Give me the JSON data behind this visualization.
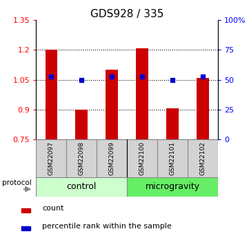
{
  "title": "GDS928 / 335",
  "samples": [
    "GSM22097",
    "GSM22098",
    "GSM22099",
    "GSM22100",
    "GSM22101",
    "GSM22102"
  ],
  "red_values": [
    1.2,
    0.9,
    1.1,
    1.21,
    0.905,
    1.06
  ],
  "blue_values": [
    1.065,
    1.05,
    1.065,
    1.065,
    1.05,
    1.065
  ],
  "ylim_left": [
    0.75,
    1.35
  ],
  "ylim_right": [
    0,
    100
  ],
  "yticks_left": [
    0.75,
    0.9,
    1.05,
    1.2,
    1.35
  ],
  "ytick_labels_left": [
    "0.75",
    "0.9",
    "1.05",
    "1.2",
    "1.35"
  ],
  "yticks_right": [
    0,
    25,
    50,
    75,
    100
  ],
  "ytick_labels_right": [
    "0",
    "25",
    "50",
    "75",
    "100%"
  ],
  "bar_bottom": 0.75,
  "bar_color": "#CC0000",
  "dot_color": "#0000CC",
  "control_label": "control",
  "microgravity_label": "microgravity",
  "control_color": "#CCFFCC",
  "microgravity_color": "#66EE66",
  "protocol_label": "protocol",
  "legend_count": "count",
  "legend_percentile": "percentile rank within the sample",
  "n_control": 3,
  "n_microgravity": 3,
  "title_fontsize": 11,
  "tick_fontsize": 8,
  "grid_yticks": [
    0.9,
    1.05,
    1.2
  ],
  "bar_width": 0.4
}
